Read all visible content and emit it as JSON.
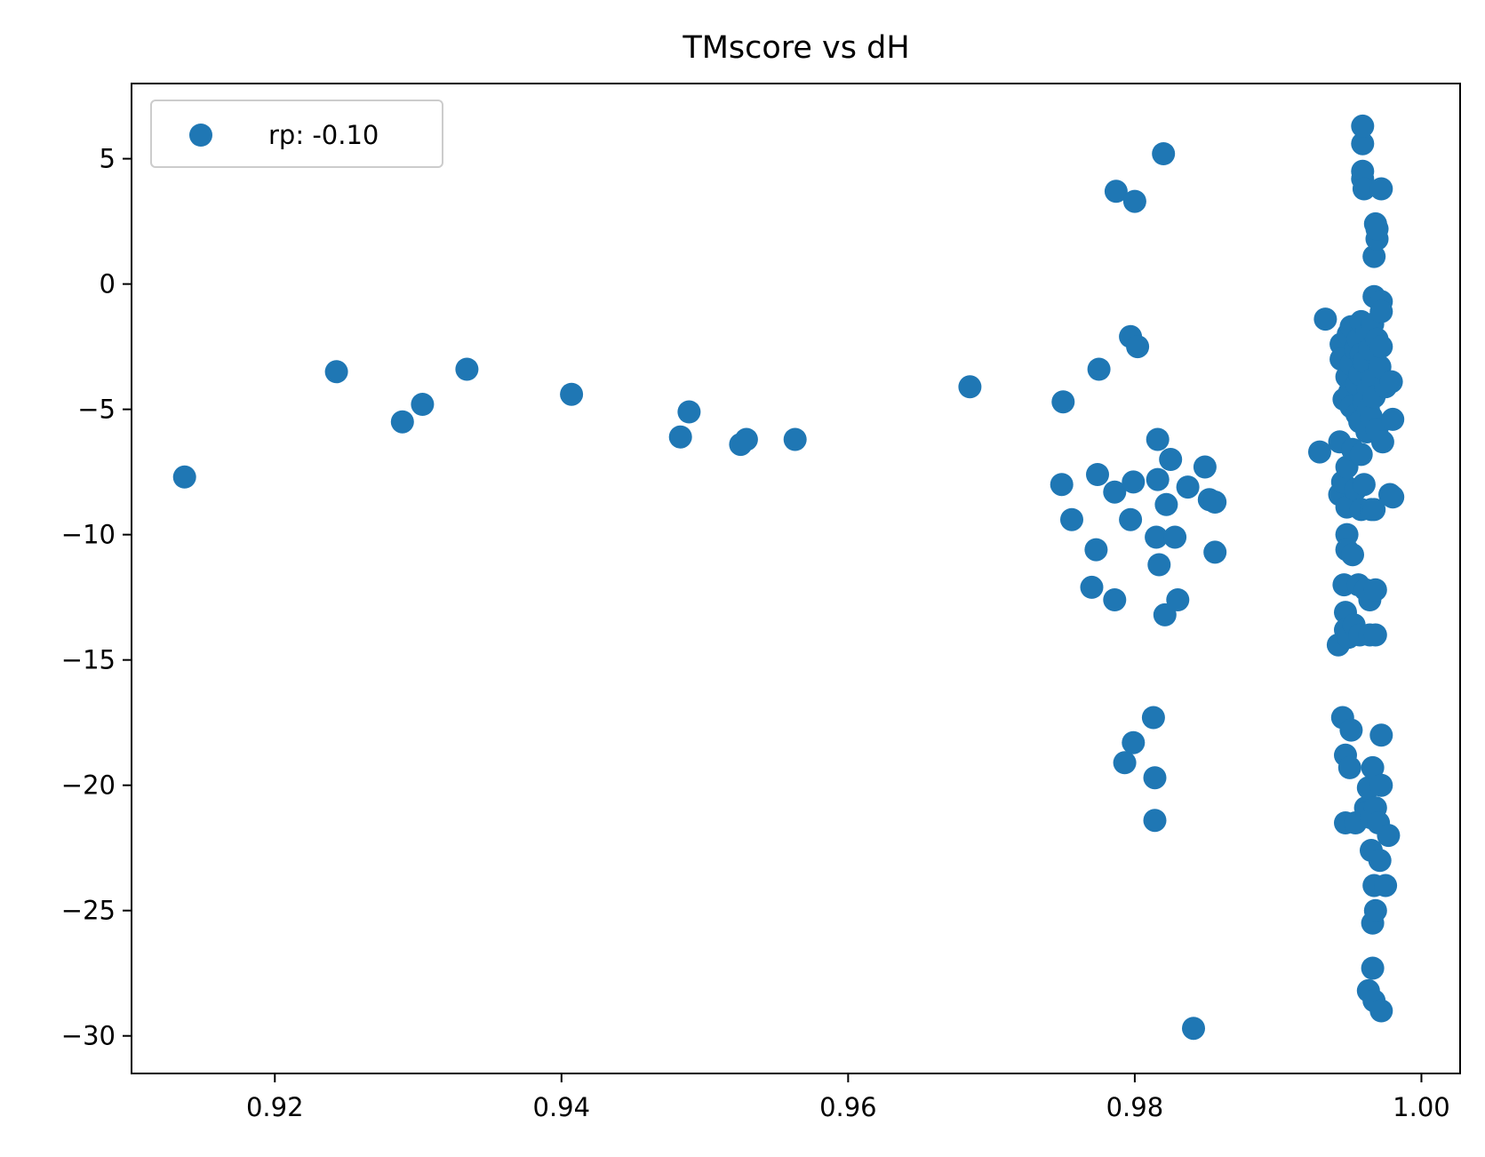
{
  "chart_data": {
    "type": "scatter",
    "title": "TMscore vs dH",
    "xlabel": "",
    "ylabel": "",
    "xlim": [
      0.91,
      1.0027
    ],
    "ylim": [
      -31.5,
      8.0
    ],
    "xticks": [
      0.92,
      0.94,
      0.96,
      0.98,
      1.0
    ],
    "xtick_labels": [
      "0.92",
      "0.94",
      "0.96",
      "0.98",
      "1.00"
    ],
    "yticks": [
      5,
      0,
      -5,
      -10,
      -15,
      -20,
      -25,
      -30
    ],
    "ytick_labels": [
      "5",
      "0",
      "−5",
      "−10",
      "−15",
      "−20",
      "−25",
      "−30"
    ],
    "grid": false,
    "legend_position": "top-left",
    "point_color": "#1f77b4",
    "series": [
      {
        "name": "rp: -0.10",
        "points": [
          [
            0.9137,
            -7.7
          ],
          [
            0.9243,
            -3.5
          ],
          [
            0.9289,
            -5.5
          ],
          [
            0.9303,
            -4.8
          ],
          [
            0.9334,
            -3.4
          ],
          [
            0.9407,
            -4.4
          ],
          [
            0.9483,
            -6.1
          ],
          [
            0.9489,
            -5.1
          ],
          [
            0.9525,
            -6.4
          ],
          [
            0.9529,
            -6.2
          ],
          [
            0.9563,
            -6.2
          ],
          [
            0.9685,
            -4.1
          ],
          [
            0.9749,
            -8.0
          ],
          [
            0.975,
            -4.7
          ],
          [
            0.9756,
            -9.4
          ],
          [
            0.977,
            -12.1
          ],
          [
            0.9773,
            -10.6
          ],
          [
            0.9774,
            -7.6
          ],
          [
            0.9775,
            -3.4
          ],
          [
            0.9786,
            -8.3
          ],
          [
            0.9786,
            -12.6
          ],
          [
            0.9787,
            3.7
          ],
          [
            0.9793,
            -19.1
          ],
          [
            0.9797,
            -2.1
          ],
          [
            0.9797,
            -9.4
          ],
          [
            0.9799,
            -7.9
          ],
          [
            0.9799,
            -18.3
          ],
          [
            0.98,
            3.3
          ],
          [
            0.9802,
            -2.5
          ],
          [
            0.9813,
            -17.3
          ],
          [
            0.9814,
            -19.7
          ],
          [
            0.9814,
            -21.4
          ],
          [
            0.9815,
            -10.1
          ],
          [
            0.9816,
            -6.2
          ],
          [
            0.9816,
            -7.8
          ],
          [
            0.9817,
            -11.2
          ],
          [
            0.982,
            5.2
          ],
          [
            0.9821,
            -13.2
          ],
          [
            0.9822,
            -8.8
          ],
          [
            0.9825,
            -7.0
          ],
          [
            0.9828,
            -10.1
          ],
          [
            0.983,
            -12.6
          ],
          [
            0.9837,
            -8.1
          ],
          [
            0.9841,
            -29.7
          ],
          [
            0.9849,
            -7.3
          ],
          [
            0.9852,
            -8.6
          ],
          [
            0.9856,
            -8.7
          ],
          [
            0.9856,
            -10.7
          ],
          [
            0.9929,
            -6.7
          ],
          [
            0.9933,
            -1.4
          ],
          [
            0.9942,
            -14.4
          ],
          [
            0.9943,
            -6.3
          ],
          [
            0.9943,
            -8.4
          ],
          [
            0.9944,
            -2.4
          ],
          [
            0.9944,
            -3.0
          ],
          [
            0.9945,
            -7.9
          ],
          [
            0.9945,
            -17.3
          ],
          [
            0.9946,
            -4.6
          ],
          [
            0.9946,
            -12.0
          ],
          [
            0.9947,
            -13.1
          ],
          [
            0.9947,
            -13.8
          ],
          [
            0.9947,
            -18.8
          ],
          [
            0.9947,
            -21.5
          ],
          [
            0.9948,
            -3.7
          ],
          [
            0.9948,
            -7.3
          ],
          [
            0.9948,
            -8.9
          ],
          [
            0.9948,
            -10.0
          ],
          [
            0.9948,
            -10.6
          ],
          [
            0.9949,
            -2.0
          ],
          [
            0.9949,
            -14.1
          ],
          [
            0.995,
            -4.3
          ],
          [
            0.995,
            -19.3
          ],
          [
            0.9951,
            -1.7
          ],
          [
            0.9951,
            -3.2
          ],
          [
            0.9951,
            -4.9
          ],
          [
            0.9951,
            -17.8
          ],
          [
            0.9952,
            -6.6
          ],
          [
            0.9952,
            -10.8
          ],
          [
            0.9953,
            -13.6
          ],
          [
            0.9954,
            -2.6
          ],
          [
            0.9954,
            -8.2
          ],
          [
            0.9954,
            -21.5
          ],
          [
            0.9955,
            -4.0
          ],
          [
            0.9955,
            -5.2
          ],
          [
            0.9956,
            -2.2
          ],
          [
            0.9956,
            -12.0
          ],
          [
            0.9957,
            -3.6
          ],
          [
            0.9957,
            -5.5
          ],
          [
            0.9957,
            -14.0
          ],
          [
            0.9958,
            -1.5
          ],
          [
            0.9958,
            -2.8
          ],
          [
            0.9958,
            -6.8
          ],
          [
            0.9958,
            -9.0
          ],
          [
            0.9959,
            4.2
          ],
          [
            0.9959,
            4.5
          ],
          [
            0.9959,
            5.6
          ],
          [
            0.9959,
            6.3
          ],
          [
            0.996,
            3.8
          ],
          [
            0.996,
            -3.1
          ],
          [
            0.996,
            -4.7
          ],
          [
            0.996,
            -8.0
          ],
          [
            0.9961,
            -12.2
          ],
          [
            0.9961,
            -20.9
          ],
          [
            0.9962,
            -1.9
          ],
          [
            0.9962,
            -5.9
          ],
          [
            0.9962,
            -21.1
          ],
          [
            0.9963,
            -4.2
          ],
          [
            0.9963,
            -5.0
          ],
          [
            0.9963,
            -20.1
          ],
          [
            0.9963,
            -28.2
          ],
          [
            0.9964,
            -2.6
          ],
          [
            0.9964,
            -12.6
          ],
          [
            0.9964,
            -14.0
          ],
          [
            0.9965,
            -5.3
          ],
          [
            0.9965,
            -9.0
          ],
          [
            0.9965,
            -21.3
          ],
          [
            0.9965,
            -22.6
          ],
          [
            0.9966,
            -1.6
          ],
          [
            0.9966,
            -3.8
          ],
          [
            0.9966,
            -19.3
          ],
          [
            0.9966,
            -25.5
          ],
          [
            0.9966,
            -27.3
          ],
          [
            0.9967,
            -0.5
          ],
          [
            0.9967,
            1.1
          ],
          [
            0.9967,
            -4.5
          ],
          [
            0.9967,
            -9.0
          ],
          [
            0.9967,
            -24.0
          ],
          [
            0.9967,
            -28.6
          ],
          [
            0.9968,
            2.4
          ],
          [
            0.9968,
            -12.2
          ],
          [
            0.9968,
            -14.0
          ],
          [
            0.9968,
            -20.9
          ],
          [
            0.9968,
            -25.0
          ],
          [
            0.9969,
            1.8
          ],
          [
            0.9969,
            2.2
          ],
          [
            0.9969,
            -2.2
          ],
          [
            0.9969,
            -5.8
          ],
          [
            0.997,
            -21.5
          ],
          [
            0.9971,
            -3.3
          ],
          [
            0.9971,
            -23.0
          ],
          [
            0.9972,
            3.8
          ],
          [
            0.9972,
            -0.7
          ],
          [
            0.9972,
            -1.1
          ],
          [
            0.9972,
            -2.5
          ],
          [
            0.9972,
            -18.0
          ],
          [
            0.9972,
            -20.0
          ],
          [
            0.9972,
            -29.0
          ],
          [
            0.9973,
            -6.3
          ],
          [
            0.9975,
            -24.0
          ],
          [
            0.9975,
            -4.1
          ],
          [
            0.9977,
            -22.0
          ],
          [
            0.9978,
            -8.4
          ],
          [
            0.9979,
            -3.9
          ],
          [
            0.998,
            -8.5
          ],
          [
            0.998,
            -5.4
          ]
        ]
      }
    ]
  }
}
